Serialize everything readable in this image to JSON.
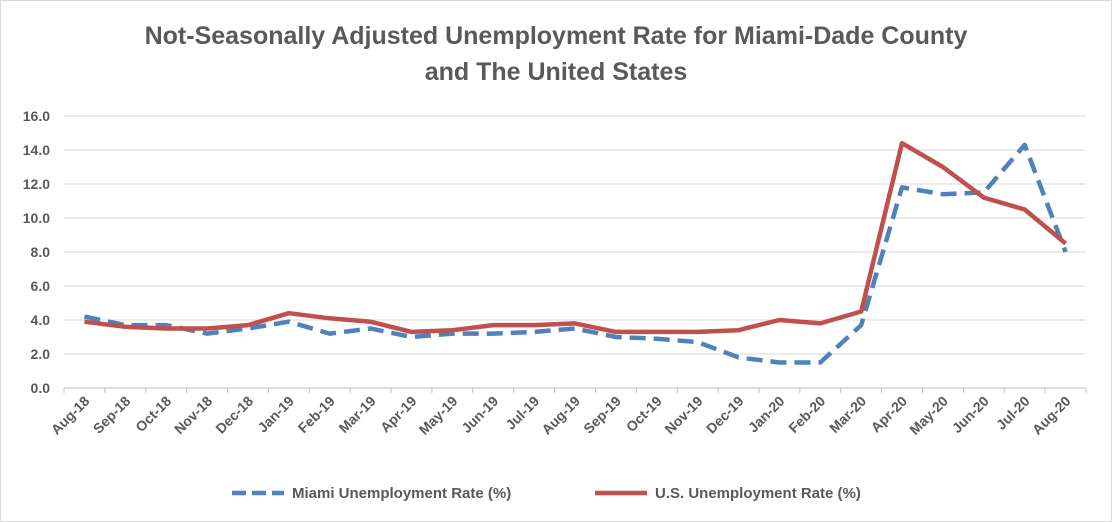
{
  "chart_data": {
    "type": "line",
    "title_line1": "Not-Seasonally Adjusted Unemployment Rate for Miami-Dade County",
    "title_line2": "and The United States",
    "xlabel": "",
    "ylabel": "",
    "ylim": [
      0,
      16
    ],
    "yticks": [
      "0.0",
      "2.0",
      "4.0",
      "6.0",
      "8.0",
      "10.0",
      "12.0",
      "14.0",
      "16.0"
    ],
    "grid": true,
    "legend_position": "bottom",
    "categories": [
      "Aug-18",
      "Sep-18",
      "Oct-18",
      "Nov-18",
      "Dec-18",
      "Jan-19",
      "Feb-19",
      "Mar-19",
      "Apr-19",
      "May-19",
      "Jun-19",
      "Jul-19",
      "Aug-19",
      "Sep-19",
      "Oct-19",
      "Nov-19",
      "Dec-19",
      "Jan-20",
      "Feb-20",
      "Mar-20",
      "Apr-20",
      "May-20",
      "Jun-20",
      "Jul-20",
      "Aug-20"
    ],
    "series": [
      {
        "name": "Miami Unemployment Rate (%)",
        "color": "#4f81bd",
        "style": "dashed",
        "values": [
          4.2,
          3.7,
          3.7,
          3.2,
          3.5,
          3.9,
          3.2,
          3.5,
          3.0,
          3.2,
          3.2,
          3.3,
          3.5,
          3.0,
          2.9,
          2.7,
          1.8,
          1.5,
          1.5,
          3.7,
          11.8,
          11.4,
          11.5,
          14.3,
          8.0
        ]
      },
      {
        "name": "U.S. Unemployment Rate (%)",
        "color": "#c0504d",
        "style": "solid",
        "values": [
          3.9,
          3.6,
          3.5,
          3.5,
          3.7,
          4.4,
          4.1,
          3.9,
          3.3,
          3.4,
          3.7,
          3.7,
          3.8,
          3.3,
          3.3,
          3.3,
          3.4,
          4.0,
          3.8,
          4.5,
          14.4,
          13.0,
          11.2,
          10.5,
          8.5
        ]
      }
    ]
  }
}
